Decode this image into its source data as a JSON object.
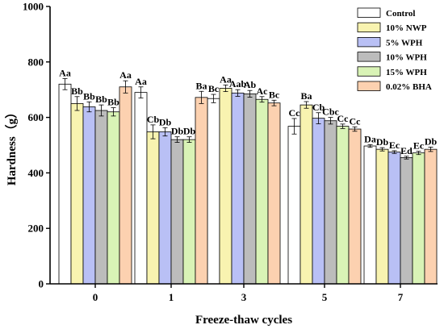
{
  "chart_data": {
    "type": "bar",
    "xlabel": "Freeze-thaw cycles",
    "ylabel": "Hardness（g）",
    "ylim": [
      0,
      1000
    ],
    "yticks": [
      0,
      200,
      400,
      600,
      800,
      1000
    ],
    "categories": [
      "0",
      "1",
      "3",
      "5",
      "7"
    ],
    "legend_position": "top-right",
    "series": [
      {
        "name": "Control",
        "color": "#ffffff",
        "values": [
          720,
          690,
          668,
          568,
          497
        ],
        "errors": [
          20,
          20,
          15,
          28,
          5
        ],
        "labels": [
          "Aa",
          "Aa",
          "Bc",
          "Cc",
          "Da"
        ]
      },
      {
        "name": "10% NWP",
        "color": "#f8f3b0",
        "values": [
          650,
          548,
          705,
          645,
          485
        ],
        "errors": [
          25,
          25,
          12,
          12,
          6
        ],
        "labels": [
          "Bb",
          "Cb",
          "Aa",
          "Ba",
          "Db"
        ]
      },
      {
        "name": "5% WPH",
        "color": "#b9c0f5",
        "values": [
          638,
          548,
          688,
          597,
          475
        ],
        "errors": [
          18,
          15,
          12,
          20,
          5
        ],
        "labels": [
          "Bb",
          "Db",
          "Aab",
          "Cb",
          "Ec"
        ]
      },
      {
        "name": "10% WPH",
        "color": "#bcbcbc",
        "values": [
          625,
          520,
          685,
          588,
          455
        ],
        "errors": [
          20,
          10,
          12,
          12,
          5
        ],
        "labels": [
          "Bb",
          "Db",
          "Ab",
          "Cbc",
          "Ed"
        ]
      },
      {
        "name": "15% WPH",
        "color": "#d9f3b6",
        "values": [
          620,
          520,
          665,
          568,
          472
        ],
        "errors": [
          15,
          10,
          10,
          8,
          6
        ],
        "labels": [
          "Bb",
          "Db",
          "Ac",
          "Cc",
          "Ec"
        ]
      },
      {
        "name": "0.02% BHA",
        "color": "#fcd1b0",
        "values": [
          710,
          672,
          652,
          558,
          485
        ],
        "errors": [
          22,
          22,
          10,
          8,
          8
        ],
        "labels": [
          "Aa",
          "Ba",
          "Bc",
          "Cc",
          "Db"
        ]
      }
    ]
  }
}
